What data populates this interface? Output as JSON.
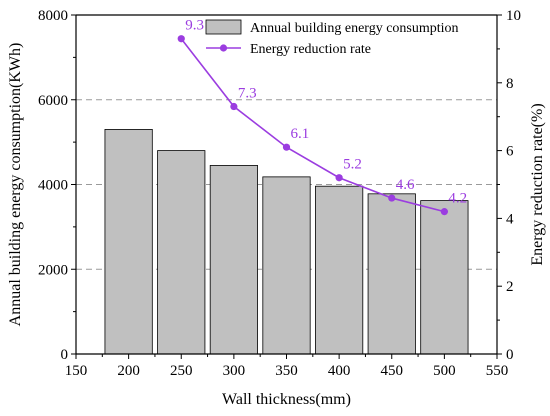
{
  "chart_data": {
    "type": "bar+line",
    "x": [
      200,
      250,
      300,
      350,
      400,
      450,
      500
    ],
    "xlabel": "Wall thickness(mm)",
    "xlim": [
      150,
      550
    ],
    "xticks": [
      "150",
      "200",
      "250",
      "300",
      "350",
      "400",
      "450",
      "500",
      "550"
    ],
    "ylabel": "Annual building energy consumption(KWh)",
    "ylim": [
      0,
      8000
    ],
    "yticks": [
      "0",
      "2000",
      "4000",
      "6000",
      "8000"
    ],
    "y2label": "Energy reduction rate(%)",
    "y2lim": [
      0,
      10
    ],
    "y2ticks": [
      "0",
      "2",
      "4",
      "6",
      "8",
      "10"
    ],
    "grid": "horizontal dashed",
    "legend_position": "top-right",
    "series": [
      {
        "name": "Annual building energy consumption",
        "kind": "bar",
        "axis": "left",
        "color": "#c0c0c0",
        "x": [
          200,
          250,
          300,
          350,
          400,
          450,
          500
        ],
        "values": [
          5300,
          4800,
          4450,
          4180,
          3960,
          3780,
          3620
        ]
      },
      {
        "name": "Energy reduction rate",
        "kind": "line",
        "axis": "right",
        "color": "#9b3de0",
        "x": [
          250,
          300,
          350,
          400,
          450,
          500
        ],
        "values": [
          9.3,
          7.3,
          6.1,
          5.2,
          4.6,
          4.2
        ],
        "labels": [
          "9.3",
          "7.3",
          "6.1",
          "5.2",
          "4.6",
          "4.2"
        ]
      }
    ]
  }
}
